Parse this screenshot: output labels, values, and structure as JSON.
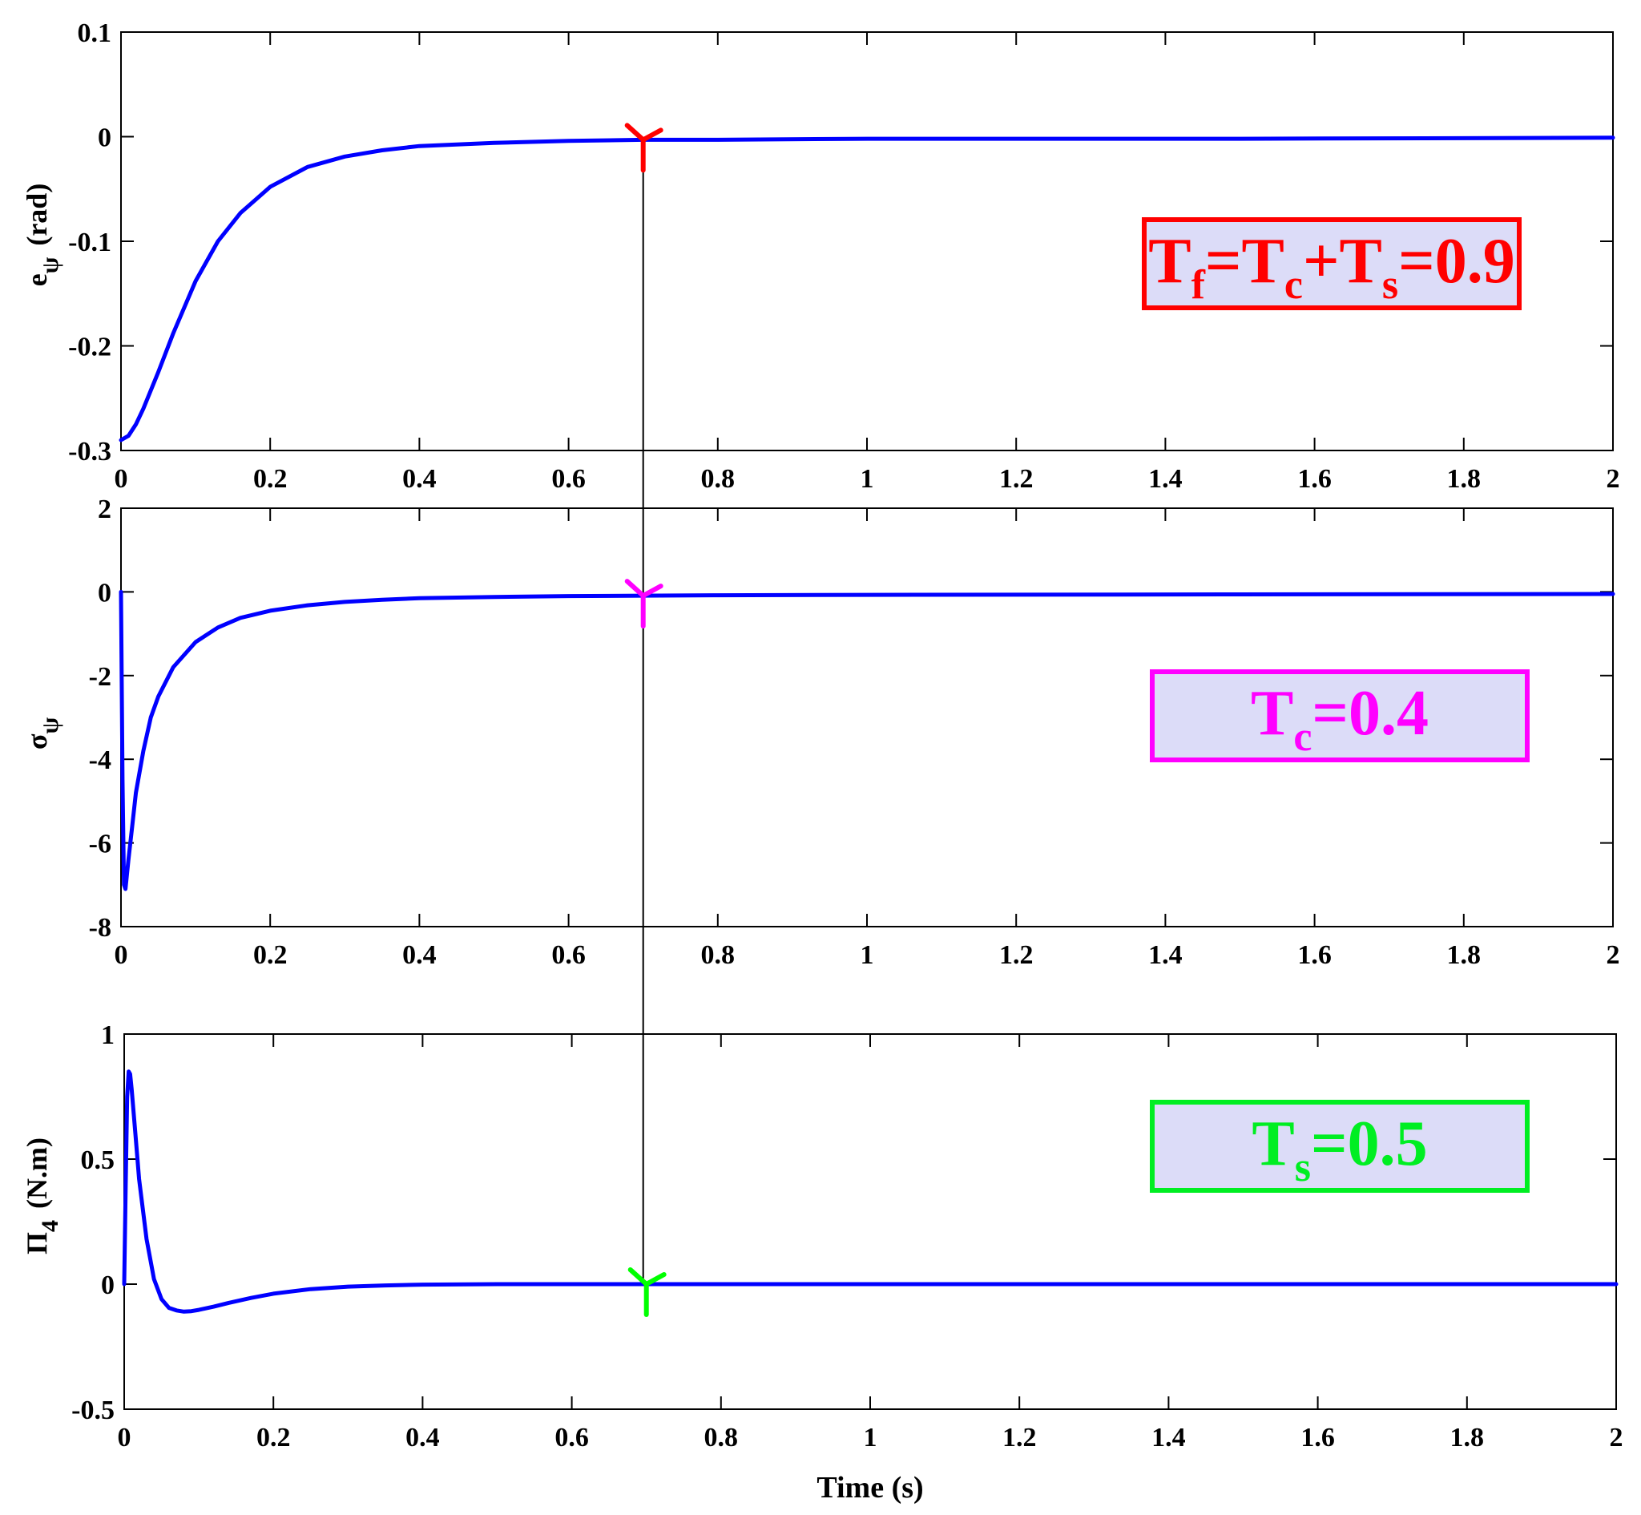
{
  "chart_data": [
    {
      "type": "line",
      "ylabel": {
        "main": "e",
        "sub": "ψ",
        "unit": "(rad)"
      },
      "xlim": [
        0,
        2
      ],
      "ylim": [
        -0.3,
        0.1
      ],
      "yticks": [
        0.1,
        0,
        -0.1,
        -0.2,
        -0.3
      ],
      "ytick_labels": [
        "0.1",
        "0",
        "-0.1",
        "-0.2",
        "-0.3"
      ],
      "xticks": [
        0,
        0.2,
        0.4,
        0.6,
        0.8,
        1,
        1.2,
        1.4,
        1.6,
        1.8,
        2
      ],
      "xtick_labels": [
        "0",
        "0.2",
        "0.4",
        "0.6",
        "0.8",
        "1",
        "1.2",
        "1.4",
        "1.6",
        "1.8",
        "2"
      ],
      "series": [
        {
          "color": "#0000ff",
          "x": [
            0,
            0.01,
            0.02,
            0.03,
            0.05,
            0.07,
            0.1,
            0.13,
            0.16,
            0.2,
            0.25,
            0.3,
            0.35,
            0.4,
            0.5,
            0.6,
            0.7,
            0.8,
            1.0,
            1.2,
            1.5,
            2.0
          ],
          "y": [
            -0.29,
            -0.286,
            -0.275,
            -0.26,
            -0.225,
            -0.188,
            -0.138,
            -0.1,
            -0.073,
            -0.048,
            -0.029,
            -0.019,
            -0.013,
            -0.009,
            -0.006,
            -0.004,
            -0.003,
            -0.003,
            -0.002,
            -0.002,
            -0.002,
            -0.001
          ]
        }
      ],
      "marker": {
        "x": 0.7,
        "y": -0.003,
        "color": "#ff0000"
      },
      "annotation": {
        "main": "T",
        "parts": [
          [
            "f",
            "=T"
          ],
          [
            "c",
            "+T"
          ],
          [
            "s",
            "=0.9"
          ]
        ],
        "color": "#ff0000",
        "fill": "#dcdcf8"
      }
    },
    {
      "type": "line",
      "ylabel": {
        "main": "σ",
        "sub": "ψ",
        "unit": ""
      },
      "xlim": [
        0,
        2
      ],
      "ylim": [
        -8,
        2
      ],
      "yticks": [
        2,
        0,
        -2,
        -4,
        -6,
        -8
      ],
      "ytick_labels": [
        "2",
        "0",
        "-2",
        "-4",
        "-6",
        "-8"
      ],
      "xticks": [
        0,
        0.2,
        0.4,
        0.6,
        0.8,
        1,
        1.2,
        1.4,
        1.6,
        1.8,
        2
      ],
      "xtick_labels": [
        "0",
        "0.2",
        "0.4",
        "0.6",
        "0.8",
        "1",
        "1.2",
        "1.4",
        "1.6",
        "1.8",
        "2"
      ],
      "series": [
        {
          "color": "#0000ff",
          "x": [
            0,
            0.002,
            0.004,
            0.006,
            0.01,
            0.015,
            0.02,
            0.03,
            0.04,
            0.05,
            0.07,
            0.1,
            0.13,
            0.16,
            0.2,
            0.25,
            0.3,
            0.35,
            0.4,
            0.5,
            0.6,
            0.7,
            0.8,
            1.0,
            1.5,
            2.0
          ],
          "y": [
            0,
            -4.5,
            -7.0,
            -7.1,
            -6.4,
            -5.6,
            -4.8,
            -3.8,
            -3.0,
            -2.5,
            -1.8,
            -1.2,
            -0.85,
            -0.62,
            -0.45,
            -0.32,
            -0.24,
            -0.19,
            -0.15,
            -0.12,
            -0.1,
            -0.09,
            -0.08,
            -0.07,
            -0.06,
            -0.05
          ]
        }
      ],
      "marker": {
        "x": 0.7,
        "y": -0.09,
        "color": "#ff00ff"
      },
      "annotation": {
        "main": "T",
        "parts": [
          [
            "c",
            "=0.4"
          ]
        ],
        "color": "#ff00ff",
        "fill": "#dcdcf8"
      }
    },
    {
      "type": "line",
      "ylabel": {
        "main": "Π",
        "sub": "4",
        "unit": "(N.m)"
      },
      "xlabel": "Time (s)",
      "xlim": [
        0,
        2
      ],
      "ylim": [
        -0.5,
        1
      ],
      "yticks": [
        1,
        0.5,
        0,
        -0.5
      ],
      "ytick_labels": [
        "1",
        "0.5",
        "0",
        "-0.5"
      ],
      "xticks": [
        0,
        0.2,
        0.4,
        0.6,
        0.8,
        1,
        1.2,
        1.4,
        1.6,
        1.8,
        2
      ],
      "xtick_labels": [
        "0",
        "0.2",
        "0.4",
        "0.6",
        "0.8",
        "1",
        "1.2",
        "1.4",
        "1.6",
        "1.8",
        "2"
      ],
      "series": [
        {
          "color": "#0000ff",
          "x": [
            0,
            0.002,
            0.004,
            0.006,
            0.008,
            0.01,
            0.015,
            0.02,
            0.03,
            0.04,
            0.05,
            0.06,
            0.07,
            0.08,
            0.09,
            0.1,
            0.12,
            0.14,
            0.17,
            0.2,
            0.25,
            0.3,
            0.35,
            0.4,
            0.5,
            0.6,
            0.8,
            1.0,
            1.5,
            2.0
          ],
          "y": [
            0,
            0.4,
            0.75,
            0.85,
            0.84,
            0.78,
            0.6,
            0.42,
            0.18,
            0.02,
            -0.06,
            -0.095,
            -0.105,
            -0.11,
            -0.108,
            -0.103,
            -0.09,
            -0.075,
            -0.055,
            -0.038,
            -0.02,
            -0.01,
            -0.005,
            -0.002,
            0,
            0,
            0,
            0,
            0,
            0
          ]
        }
      ],
      "marker": {
        "x": 0.7,
        "y": 0.0,
        "color": "#00ff00"
      },
      "annotation": {
        "main": "T",
        "parts": [
          [
            "s",
            "=0.5"
          ]
        ],
        "color": "#00ee22",
        "fill": "#dcdcf8"
      }
    }
  ],
  "cursor_line": {
    "x": 0.7
  }
}
